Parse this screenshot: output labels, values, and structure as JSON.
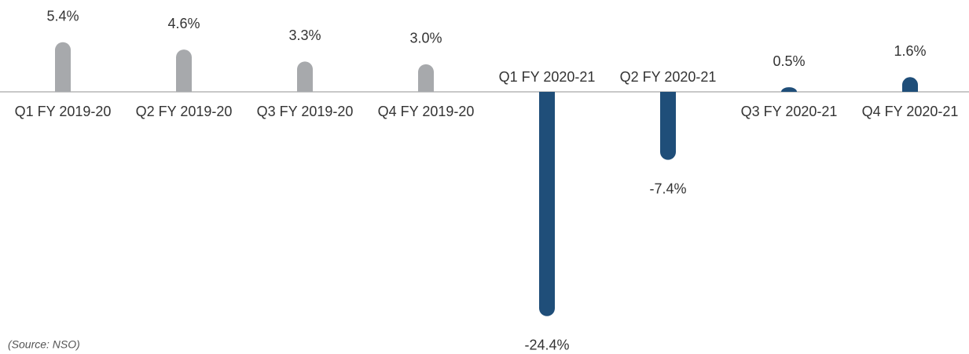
{
  "chart_data": {
    "type": "bar",
    "categories": [
      "Q1 FY 2019-20",
      "Q2 FY 2019-20",
      "Q3 FY 2019-20",
      "Q4 FY 2019-20",
      "Q1 FY 2020-21",
      "Q2 FY 2020-21",
      "Q3 FY 2020-21",
      "Q4 FY 2020-21"
    ],
    "values": [
      5.4,
      4.6,
      3.3,
      3.0,
      -24.4,
      -7.4,
      0.5,
      1.6
    ],
    "value_labels": [
      "5.4%",
      "4.6%",
      "3.3%",
      "3.0%",
      "-24.4%",
      "-7.4%",
      "0.5%",
      "1.6%"
    ],
    "colors": [
      "#a7a9ac",
      "#a7a9ac",
      "#a7a9ac",
      "#a7a9ac",
      "#1f4e79",
      "#1f4e79",
      "#1f4e79",
      "#1f4e79"
    ],
    "note": "(Source: NSO)"
  }
}
